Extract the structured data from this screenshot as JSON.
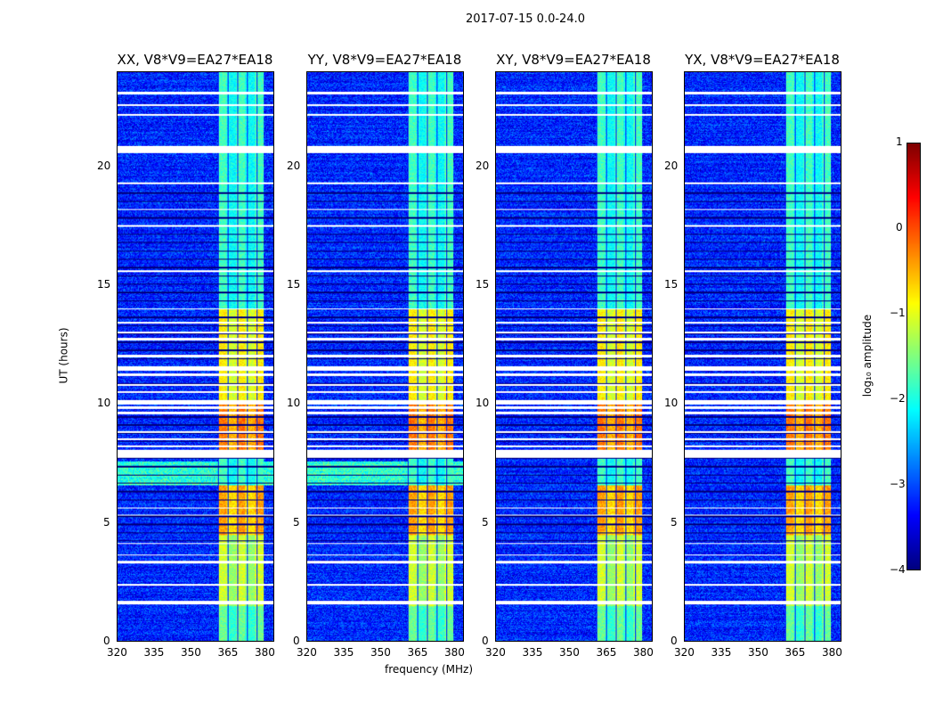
{
  "chart_data": {
    "type": "heatmap",
    "title": "2017-07-15 0.0-24.0",
    "xlabel": "frequency (MHz)",
    "ylabel": "UT (hours)",
    "xlim": [
      320,
      384
    ],
    "ylim": [
      0,
      24
    ],
    "xticks": [
      "320",
      "335",
      "350",
      "365",
      "380"
    ],
    "yticks": [
      "0",
      "5",
      "10",
      "15",
      "20"
    ],
    "panels": [
      {
        "title": "XX, V8*V9=EA27*EA18"
      },
      {
        "title": "YY, V8*V9=EA27*EA18"
      },
      {
        "title": "XY, V8*V9=EA27*EA18"
      },
      {
        "title": "YX, V8*V9=EA27*EA18"
      }
    ],
    "colorbar": {
      "label": "log₁₀ amplitude",
      "range": [
        -4,
        1
      ],
      "ticks": [
        "1",
        "0",
        "−1",
        "−2",
        "−3",
        "−4"
      ],
      "colormap": "jet"
    },
    "rfi_band_mhz": [
      361,
      380
    ],
    "flagged_hours": [
      [
        1.55,
        1.7
      ],
      [
        2.35,
        2.42
      ],
      [
        3.3,
        3.38
      ],
      [
        3.6,
        3.66
      ],
      [
        4.1,
        4.16
      ],
      [
        5.3,
        5.36
      ],
      [
        5.6,
        5.66
      ],
      [
        7.75,
        8.1
      ],
      [
        8.2,
        8.26
      ],
      [
        8.5,
        8.56
      ],
      [
        8.8,
        8.86
      ],
      [
        9.6,
        9.7
      ],
      [
        9.8,
        9.9
      ],
      [
        10.0,
        10.2
      ],
      [
        10.5,
        10.56
      ],
      [
        10.8,
        10.86
      ],
      [
        11.2,
        11.3
      ],
      [
        11.4,
        11.6
      ],
      [
        12.0,
        12.08
      ],
      [
        12.7,
        12.8
      ],
      [
        13.0,
        13.08
      ],
      [
        13.4,
        13.5
      ],
      [
        14.0,
        14.05
      ],
      [
        15.6,
        15.66
      ],
      [
        17.5,
        17.56
      ],
      [
        18.2,
        18.26
      ],
      [
        19.3,
        19.36
      ],
      [
        20.6,
        20.9
      ],
      [
        22.2,
        22.26
      ],
      [
        22.6,
        22.66
      ],
      [
        23.1,
        23.2
      ]
    ],
    "band_levels": [
      [
        0,
        1.5,
        -1.6
      ],
      [
        1.5,
        4.5,
        -1.1
      ],
      [
        4.5,
        6.6,
        -0.4
      ],
      [
        6.6,
        7.8,
        -1.8
      ],
      [
        8.1,
        10,
        -0.2
      ],
      [
        10,
        14,
        -0.8
      ],
      [
        14,
        24,
        -1.8
      ]
    ]
  }
}
